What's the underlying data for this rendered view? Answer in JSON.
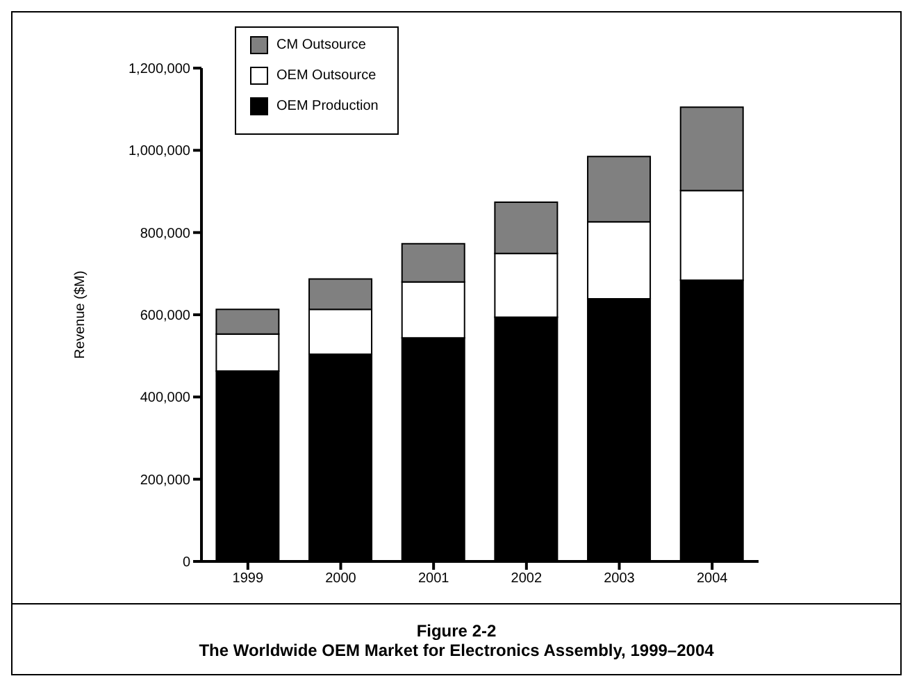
{
  "chart_data": {
    "type": "bar",
    "stacked": true,
    "title": "Figure 2-2",
    "subtitle": "The Worldwide OEM Market for Electronics Assembly, 1999–2004",
    "ylabel": "Revenue ($M)",
    "categories": [
      "1999",
      "2000",
      "2001",
      "2002",
      "2003",
      "2004"
    ],
    "series": [
      {
        "name": "OEM Production",
        "color": "#000000",
        "values": [
          463000,
          504000,
          544000,
          594000,
          639000,
          684000
        ]
      },
      {
        "name": "OEM Outsource",
        "color": "#ffffff",
        "values": [
          90000,
          109000,
          136000,
          155000,
          187000,
          218000
        ]
      },
      {
        "name": "CM Outsource",
        "color": "#808080",
        "values": [
          60000,
          74000,
          93000,
          125000,
          159000,
          203000
        ]
      }
    ],
    "ylim": [
      0,
      1200000
    ],
    "yticks": [
      0,
      {
        "value": 200000,
        "label": "200,000"
      },
      {
        "value": 400000,
        "label": "400,000"
      },
      {
        "value": 600000,
        "label": "600,000"
      },
      {
        "value": 800000,
        "label": "800,000"
      },
      {
        "value": 1000000,
        "label": "1,000,000"
      },
      {
        "value": 1200000,
        "label": "1,200,000"
      }
    ],
    "grid": false,
    "legend": "top left"
  }
}
